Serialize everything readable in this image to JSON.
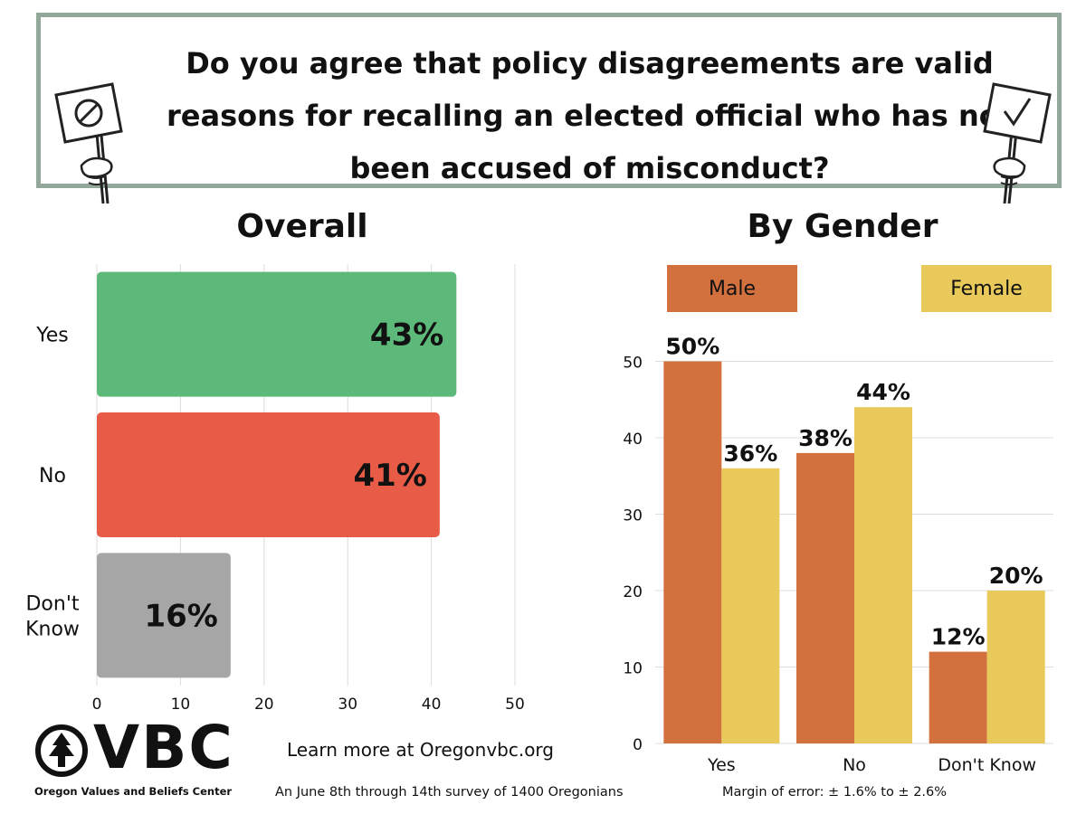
{
  "title": "Do you agree that policy disagreements are valid reasons for recalling an elected official who has not been accused of misconduct?",
  "colors": {
    "yes": "#5db97a",
    "no": "#e85c47",
    "dont_know": "#a6a6a6",
    "male": "#d2713d",
    "female": "#e8c95a",
    "frame": "#93a89a"
  },
  "chart_data": [
    {
      "type": "bar",
      "orientation": "horizontal",
      "title": "Overall",
      "categories": [
        "Yes",
        "No",
        "Don't Know"
      ],
      "values": [
        43,
        41,
        16
      ],
      "value_labels": [
        "43%",
        "41%",
        "16%"
      ],
      "xlim": [
        0,
        50
      ],
      "xticks": [
        "0",
        "10",
        "20",
        "30",
        "40",
        "50"
      ],
      "grid": "vertical"
    },
    {
      "type": "bar",
      "orientation": "vertical",
      "title": "By Gender",
      "categories": [
        "Yes",
        "No",
        "Don't Know"
      ],
      "series": [
        {
          "name": "Male",
          "values": [
            50,
            38,
            12
          ],
          "value_labels": [
            "50%",
            "38%",
            "12%"
          ]
        },
        {
          "name": "Female",
          "values": [
            36,
            44,
            20
          ],
          "value_labels": [
            "36%",
            "44%",
            "20%"
          ]
        }
      ],
      "ylim": [
        0,
        50
      ],
      "yticks": [
        "0",
        "10",
        "20",
        "30",
        "40",
        "50"
      ],
      "legend": "top",
      "grid": "horizontal"
    }
  ],
  "logo": {
    "letters": "VBC",
    "org_name": "Oregon Values and Beliefs Center"
  },
  "footer": {
    "learn_more": "Learn more at Oregonvbc.org",
    "survey": "An June 8th through 14th survey of 1400 Oregonians",
    "margin": "Margin of error: ± 1.6% to ± 2.6%"
  }
}
